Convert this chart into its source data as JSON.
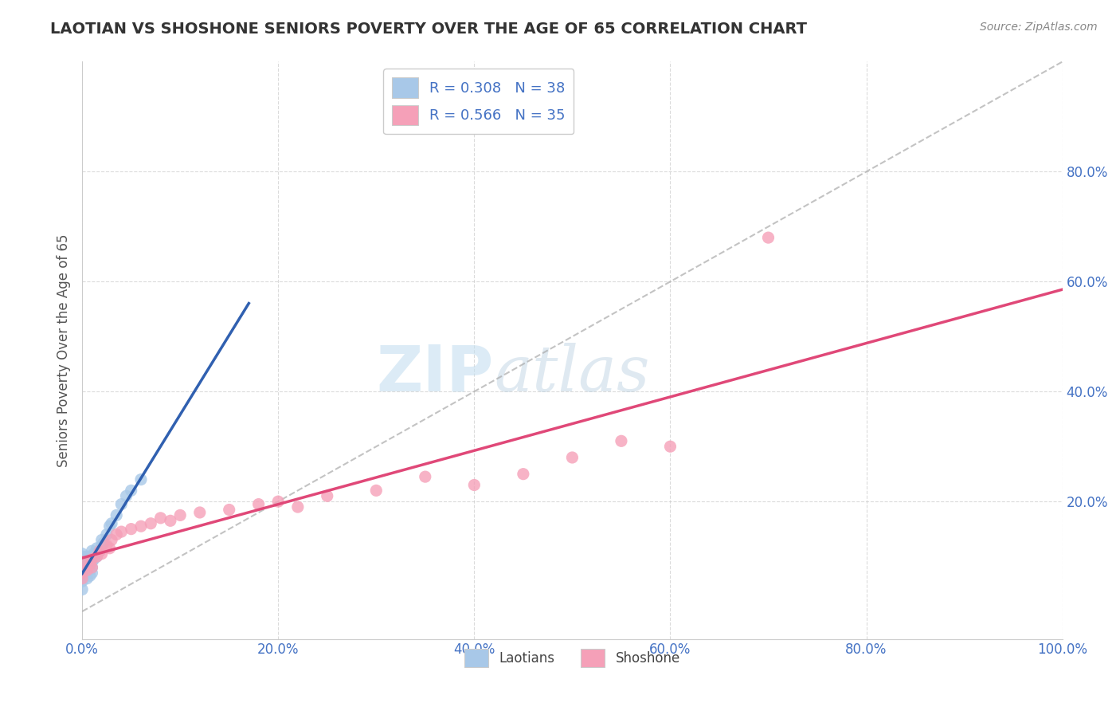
{
  "title": "LAOTIAN VS SHOSHONE SENIORS POVERTY OVER THE AGE OF 65 CORRELATION CHART",
  "source_text": "Source: ZipAtlas.com",
  "ylabel": "Seniors Poverty Over the Age of 65",
  "watermark_zip": "ZIP",
  "watermark_atlas": "atlas",
  "legend_labels": [
    "Laotians",
    "Shoshone"
  ],
  "legend_r": [
    "R = 0.308",
    "R = 0.566"
  ],
  "legend_n": [
    "N = 38",
    "N = 35"
  ],
  "blue_color": "#a8c8e8",
  "pink_color": "#f5a0b8",
  "blue_line_color": "#3060b0",
  "pink_line_color": "#e04878",
  "axis_label_color": "#4472c4",
  "title_color": "#333333",
  "laotian_x": [
    0.0,
    0.0,
    0.0,
    0.0,
    0.0,
    0.0,
    0.0,
    0.0,
    0.0,
    0.0,
    0.005,
    0.005,
    0.005,
    0.005,
    0.005,
    0.008,
    0.008,
    0.008,
    0.01,
    0.01,
    0.01,
    0.01,
    0.012,
    0.012,
    0.015,
    0.015,
    0.018,
    0.02,
    0.02,
    0.022,
    0.025,
    0.028,
    0.03,
    0.035,
    0.04,
    0.045,
    0.05,
    0.06
  ],
  "laotian_y": [
    0.04,
    0.055,
    0.065,
    0.075,
    0.08,
    0.085,
    0.09,
    0.095,
    0.1,
    0.105,
    0.06,
    0.07,
    0.08,
    0.09,
    0.1,
    0.065,
    0.075,
    0.095,
    0.07,
    0.08,
    0.09,
    0.11,
    0.095,
    0.105,
    0.1,
    0.115,
    0.11,
    0.12,
    0.13,
    0.125,
    0.14,
    0.155,
    0.16,
    0.175,
    0.195,
    0.21,
    0.22,
    0.24
  ],
  "shoshone_x": [
    0.0,
    0.0,
    0.0,
    0.005,
    0.008,
    0.01,
    0.01,
    0.015,
    0.018,
    0.02,
    0.025,
    0.028,
    0.03,
    0.035,
    0.04,
    0.05,
    0.06,
    0.07,
    0.08,
    0.09,
    0.1,
    0.12,
    0.15,
    0.18,
    0.2,
    0.22,
    0.25,
    0.3,
    0.35,
    0.4,
    0.45,
    0.5,
    0.55,
    0.6,
    0.7
  ],
  "shoshone_y": [
    0.06,
    0.07,
    0.09,
    0.075,
    0.085,
    0.08,
    0.095,
    0.1,
    0.11,
    0.105,
    0.12,
    0.115,
    0.13,
    0.14,
    0.145,
    0.15,
    0.155,
    0.16,
    0.17,
    0.165,
    0.175,
    0.18,
    0.185,
    0.195,
    0.2,
    0.19,
    0.21,
    0.22,
    0.245,
    0.23,
    0.25,
    0.28,
    0.31,
    0.3,
    0.68
  ],
  "xlim": [
    0.0,
    1.0
  ],
  "ylim": [
    -0.05,
    1.0
  ],
  "xticks": [
    0.0,
    0.2,
    0.4,
    0.6,
    0.8,
    1.0
  ],
  "yticks": [
    0.2,
    0.4,
    0.6,
    0.8
  ],
  "xtick_labels": [
    "0.0%",
    "20.0%",
    "40.0%",
    "60.0%",
    "80.0%",
    "100.0%"
  ],
  "ytick_labels": [
    "20.0%",
    "40.0%",
    "60.0%",
    "80.0%"
  ],
  "background_color": "#ffffff",
  "grid_color": "#cccccc"
}
